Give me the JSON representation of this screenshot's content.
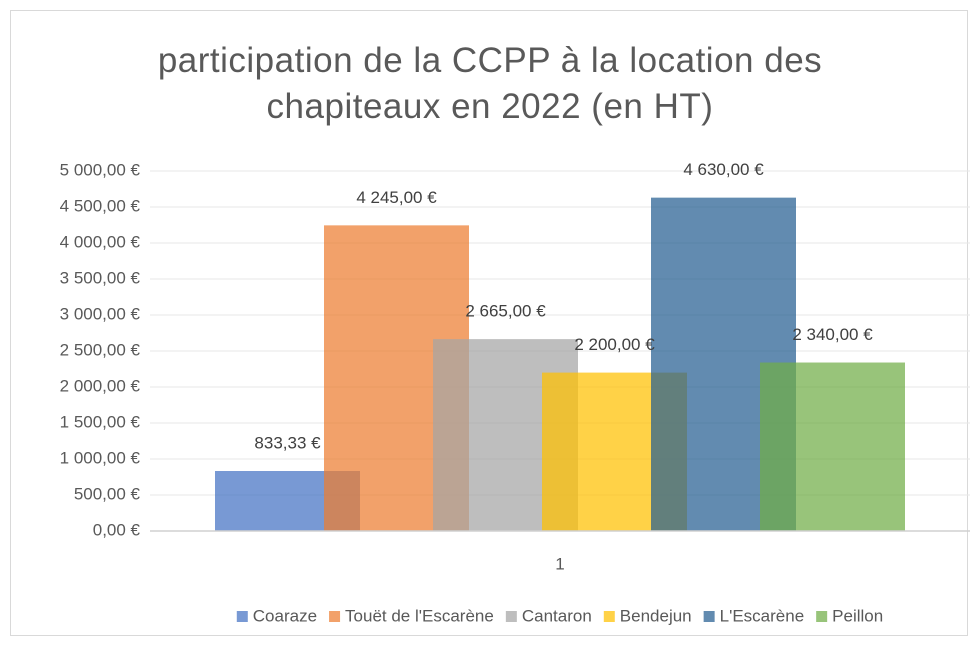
{
  "chart_data": {
    "type": "bar",
    "title": "participation de la CCPP à la location des chapiteaux en 2022 (en HT)",
    "categories": [
      "1"
    ],
    "series": [
      {
        "name": "Coaraze",
        "color": "#4472c4",
        "values": [
          833.33
        ],
        "value_labels": [
          "833,33 €"
        ]
      },
      {
        "name": "Touët de l'Escarène",
        "color": "#ed7d31",
        "values": [
          4245
        ],
        "value_labels": [
          "4 245,00 €"
        ]
      },
      {
        "name": "Cantaron",
        "color": "#a5a5a5",
        "values": [
          2665
        ],
        "value_labels": [
          "2 665,00 €"
        ]
      },
      {
        "name": "Bendejun",
        "color": "#ffc000",
        "values": [
          2200
        ],
        "value_labels": [
          "2 200,00 €"
        ]
      },
      {
        "name": "L'Escarène",
        "color": "#255e91",
        "values": [
          4630
        ],
        "value_labels": [
          "4 630,00 €"
        ]
      },
      {
        "name": "Peillon",
        "color": "#70ad47",
        "values": [
          2340
        ],
        "value_labels": [
          "2 340,00 €"
        ]
      }
    ],
    "ylim": [
      0,
      5000
    ],
    "yticks": [
      {
        "value": 0,
        "label": "0,00 €"
      },
      {
        "value": 500,
        "label": "500,00 €"
      },
      {
        "value": 1000,
        "label": "1 000,00 €"
      },
      {
        "value": 1500,
        "label": "1 500,00 €"
      },
      {
        "value": 2000,
        "label": "2 000,00 €"
      },
      {
        "value": 2500,
        "label": "2 500,00 €"
      },
      {
        "value": 3000,
        "label": "3 000,00 €"
      },
      {
        "value": 3500,
        "label": "3 500,00 €"
      },
      {
        "value": 4000,
        "label": "4 000,00 €"
      },
      {
        "value": 4500,
        "label": "4 500,00 €"
      },
      {
        "value": 5000,
        "label": "5 000,00 €"
      }
    ],
    "grid": true,
    "legend": "bottom"
  }
}
